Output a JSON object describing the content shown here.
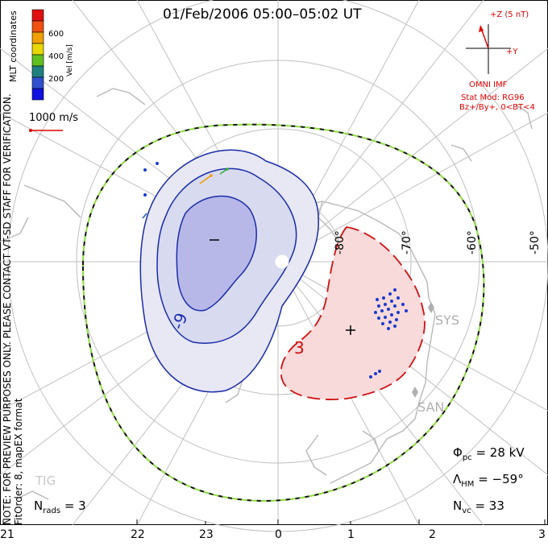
{
  "title": "01/Feb/2006 05:00–05:02 UT",
  "side_notes": {
    "preview": "NOTE: FOR PREVIEW PURPOSES ONLY. PLEASE CONTACT VT-SD STAFF FOR VERIFICATION.",
    "fit": "FitOrder: 8, mapEX format",
    "coords": "MLT coordinates"
  },
  "color_scale": {
    "label": "Vel [m/s]",
    "ticks": [
      "600",
      "400",
      "200"
    ],
    "colors": [
      "#e01010",
      "#f05010",
      "#f0a000",
      "#e8d800",
      "#60c020",
      "#208080",
      "#3050d0",
      "#1010e0"
    ]
  },
  "ref_vector": {
    "label": "1000 m/s",
    "color": "#e00000"
  },
  "imf": {
    "z_label": "+Z (5 nT)",
    "y_label": "+Y",
    "source": "OMNI IMF",
    "model": "Stat Mod: RG96",
    "condition": "Bz+/By+, 0<BT<4",
    "color": "#e00000"
  },
  "mlat_labels": [
    "-80°",
    "-70°",
    "-60°",
    "-50°"
  ],
  "stations": [
    "SYS",
    "SAN",
    "TIG"
  ],
  "contours": {
    "negative_label": "-9",
    "positive_label": "3",
    "neg_color": "#1a2ca8",
    "pos_color": "#d01010"
  },
  "stats": {
    "phi_pc": {
      "sym": "Φ",
      "sub": "pc",
      "value": "= 28 kV"
    },
    "lambda_hm": {
      "sym": "Λ",
      "sub": "HM",
      "value": "= −59°"
    },
    "n_vc": {
      "sym": "N",
      "sub": "vc",
      "value": "= 33"
    },
    "n_rads": {
      "sym": "N",
      "sub": "rads",
      "value": "= 3"
    }
  },
  "mlt_axis": [
    "21",
    "22",
    "23",
    "0",
    "1",
    "2",
    "3"
  ]
}
